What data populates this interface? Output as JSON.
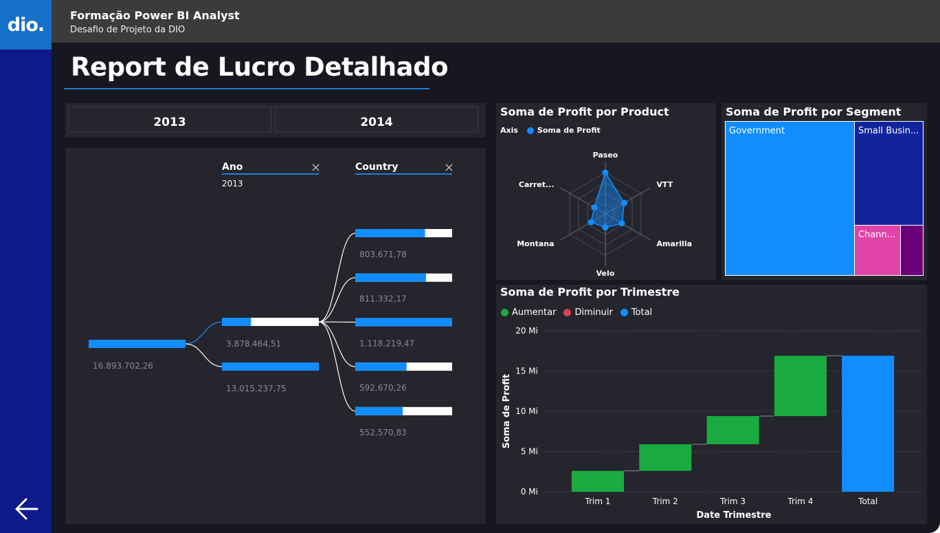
{
  "app": {
    "logo": "dio.",
    "header_title": "Formação Power BI Analyst",
    "header_subtitle": "Desafio de Projeto da DIO",
    "page_title": "Report de Lucro Detalhado",
    "back_icon": "arrow-left-icon"
  },
  "colors": {
    "accent": "#1e7fd6",
    "blue": "#118dff",
    "green": "#1aab40",
    "red": "#d64550",
    "sidebar": "#0e1a8a",
    "pink": "#e044a7",
    "purple": "#6b007b",
    "navy": "#12239e"
  },
  "slicer": {
    "options": [
      "2013",
      "2014"
    ]
  },
  "decomposition": {
    "levels": [
      {
        "label": "Ano",
        "selected": "2013",
        "close_icon": "close-icon"
      },
      {
        "label": "Country",
        "close_icon": "close-icon"
      }
    ],
    "root_value": "16.893.702,26",
    "year_values": [
      "3.878.464,51",
      "13.015.237,75"
    ],
    "country_values": [
      "803.671,78",
      "811.332,17",
      "1.118.219,47",
      "592.670,26",
      "552.570,83"
    ],
    "year_fraction": [
      0.3,
      1.0
    ],
    "country_fraction": [
      0.72,
      0.73,
      1.0,
      0.53,
      0.49
    ]
  },
  "radar": {
    "title": "Soma de Profit por Product",
    "legend_axis": "Axis",
    "legend_series": "Soma de Profit",
    "chart_data": {
      "type": "radar",
      "axes": [
        "Paseo",
        "VTT",
        "Amarilla",
        "Velo",
        "Montana",
        "Carret..."
      ],
      "values": [
        1.0,
        0.53,
        0.46,
        0.33,
        0.4,
        0.31
      ]
    }
  },
  "treemap": {
    "title": "Soma de Profit por Segment",
    "chart_data": {
      "type": "treemap",
      "labels": [
        "Government",
        "Small Busin...",
        "Chann...",
        ""
      ],
      "values": [
        62,
        25,
        9,
        4
      ]
    }
  },
  "waterfall": {
    "title": "Soma de Profit por Trimestre",
    "legend": [
      "Aumentar",
      "Diminuir",
      "Total"
    ],
    "chart_data": {
      "type": "waterfall",
      "categories": [
        "Trim 1",
        "Trim 2",
        "Trim 3",
        "Trim 4",
        "Total"
      ],
      "values": [
        2.6,
        3.3,
        3.5,
        7.5,
        16.9
      ],
      "kinds": [
        "increase",
        "increase",
        "increase",
        "increase",
        "total"
      ],
      "yticks": [
        "0 Mi",
        "5 Mi",
        "10 Mi",
        "15 Mi",
        "20 Mi"
      ],
      "ylim": [
        0,
        20
      ],
      "xlabel": "Date Trimestre",
      "ylabel": "Soma de Profit"
    }
  }
}
